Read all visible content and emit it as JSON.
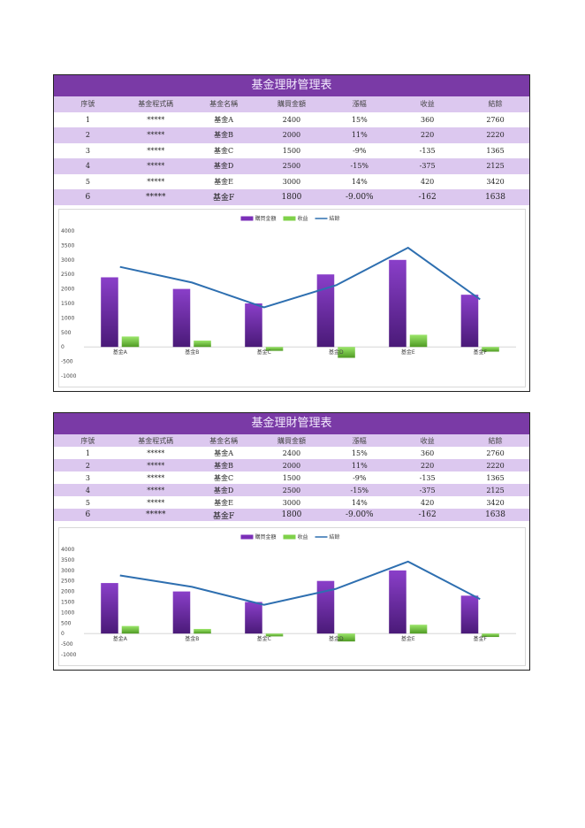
{
  "title": "基金理財管理表",
  "headers": [
    "序號",
    "基金程式碼",
    "基金名稱",
    "購買金額",
    "漲幅",
    "收益",
    "結餘"
  ],
  "rows": [
    [
      "1",
      "*****",
      "基金A",
      "2400",
      "15%",
      "360",
      "2760"
    ],
    [
      "2",
      "*****",
      "基金B",
      "2000",
      "11%",
      "220",
      "2220"
    ],
    [
      "3",
      "*****",
      "基金C",
      "1500",
      "-9%",
      "-135",
      "1365"
    ],
    [
      "4",
      "*****",
      "基金D",
      "2500",
      "-15%",
      "-375",
      "2125"
    ],
    [
      "5",
      "*****",
      "基金E",
      "3000",
      "14%",
      "420",
      "3420"
    ],
    [
      "6",
      "*****",
      "基金F",
      "1800",
      "-9.00%",
      "-162",
      "1638"
    ]
  ],
  "colors": {
    "title_bar": "#7a3aa6",
    "row_alt": "#dcc8ef",
    "purchase_bar": "#7b2fb8",
    "profit_bar": "#7fd14a",
    "balance_line": "#2e6fb0"
  },
  "chart_data": [
    {
      "type": "bar",
      "categories": [
        "基金A",
        "基金B",
        "基金C",
        "基金D",
        "基金E",
        "基金F"
      ],
      "series": [
        {
          "name": "購買金額",
          "type": "bar",
          "values": [
            2400,
            2000,
            1500,
            2500,
            3000,
            1800
          ]
        },
        {
          "name": "收益",
          "type": "bar",
          "values": [
            360,
            220,
            -135,
            -375,
            420,
            -162
          ]
        },
        {
          "name": "結餘",
          "type": "line",
          "values": [
            2760,
            2220,
            1365,
            2125,
            3420,
            1638
          ]
        }
      ],
      "ylim": [
        -1000,
        4000
      ],
      "yticks": [
        "4000",
        "3500",
        "3000",
        "2500",
        "2000",
        "1500",
        "1000",
        "500",
        "0",
        "-500",
        "-1000"
      ],
      "grid": false,
      "legend": "top-center"
    },
    {
      "type": "bar",
      "categories": [
        "基金A",
        "基金B",
        "基金C",
        "基金D",
        "基金E",
        "基金F"
      ],
      "series": [
        {
          "name": "購買金額",
          "type": "bar",
          "values": [
            2400,
            2000,
            1500,
            2500,
            3000,
            1800
          ]
        },
        {
          "name": "收益",
          "type": "bar",
          "values": [
            360,
            220,
            -135,
            -375,
            420,
            -162
          ]
        },
        {
          "name": "結餘",
          "type": "line",
          "values": [
            2760,
            2220,
            1365,
            2125,
            3420,
            1638
          ]
        }
      ],
      "ylim": [
        -1000,
        4000
      ],
      "yticks": [
        "4000",
        "3500",
        "3000",
        "2500",
        "2000",
        "1500",
        "1000",
        "500",
        "0",
        "-500",
        "-1000"
      ],
      "grid": false,
      "legend": "top-center"
    }
  ]
}
